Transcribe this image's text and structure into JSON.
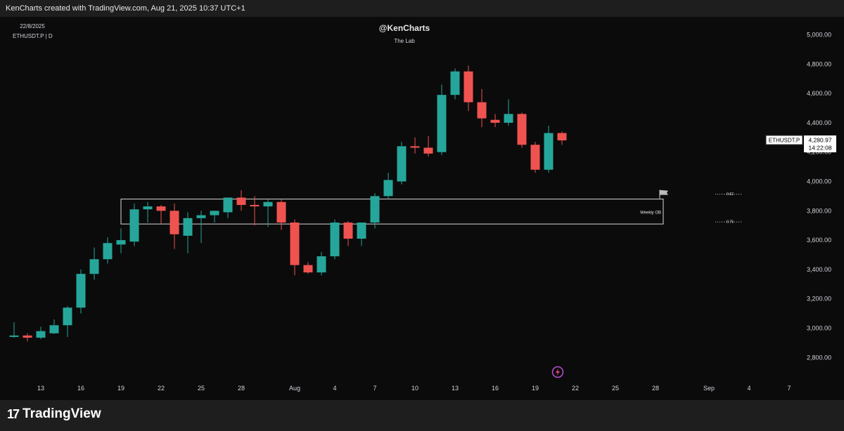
{
  "header": {
    "credit": "KenCharts created with TradingView.com, Aug 21, 2025 10:37 UTC+1"
  },
  "legend": {
    "date": "22/8/2025",
    "symbol": "ETHUSDT.P | D"
  },
  "watermark": {
    "title": "@KenCharts",
    "subtitle": "The Lab"
  },
  "price_label": {
    "symbol": "ETHUSDT.P",
    "price": "4,280.97",
    "countdown": "14:22:08"
  },
  "zone": {
    "label": "Weekly OB",
    "fib_upper": "0.62",
    "fib_lower": "0.75",
    "top": 3880,
    "bottom": 3710
  },
  "footer": {
    "brand": "TradingView"
  },
  "icons": {
    "flag": "flag-icon",
    "lightning": "lightning-icon"
  },
  "colors": {
    "up": "#26a69a",
    "down": "#ef5350",
    "background": "#0b0b0b"
  },
  "chart_data": {
    "type": "candlestick",
    "ylim": [
      2700,
      5100
    ],
    "yticks": [
      2800,
      3000,
      3200,
      3400,
      3600,
      3800,
      4000,
      4200,
      4400,
      4600,
      4800,
      5000
    ],
    "ytick_labels": [
      "2,800.00",
      "3,000.00",
      "3,200.00",
      "3,400.00",
      "3,600.00",
      "3,800.00",
      "4,000.00",
      "4,200.00",
      "4,400.00",
      "4,600.00",
      "4,800.00",
      "5,000.00"
    ],
    "xticks": [
      {
        "label": "13",
        "index": 2
      },
      {
        "label": "16",
        "index": 5
      },
      {
        "label": "19",
        "index": 8
      },
      {
        "label": "22",
        "index": 11
      },
      {
        "label": "25",
        "index": 14
      },
      {
        "label": "28",
        "index": 17
      },
      {
        "label": "Aug",
        "index": 21
      },
      {
        "label": "4",
        "index": 24
      },
      {
        "label": "7",
        "index": 27
      },
      {
        "label": "10",
        "index": 30
      },
      {
        "label": "13",
        "index": 33
      },
      {
        "label": "16",
        "index": 36
      },
      {
        "label": "19",
        "index": 39
      },
      {
        "label": "22",
        "index": 42
      },
      {
        "label": "25",
        "index": 45
      },
      {
        "label": "28",
        "index": 48
      },
      {
        "label": "Sep",
        "index": 52
      },
      {
        "label": "4",
        "index": 55
      },
      {
        "label": "7",
        "index": 58
      }
    ],
    "candles": [
      {
        "o": 2945,
        "h": 3040,
        "l": 2935,
        "c": 2950
      },
      {
        "o": 2950,
        "h": 2965,
        "l": 2910,
        "c": 2935
      },
      {
        "o": 2935,
        "h": 3010,
        "l": 2925,
        "c": 2980
      },
      {
        "o": 2965,
        "h": 3060,
        "l": 2960,
        "c": 3020
      },
      {
        "o": 3020,
        "h": 3150,
        "l": 2940,
        "c": 3140
      },
      {
        "o": 3140,
        "h": 3400,
        "l": 3100,
        "c": 3370
      },
      {
        "o": 3370,
        "h": 3550,
        "l": 3330,
        "c": 3470
      },
      {
        "o": 3470,
        "h": 3620,
        "l": 3440,
        "c": 3580
      },
      {
        "o": 3570,
        "h": 3680,
        "l": 3510,
        "c": 3600
      },
      {
        "o": 3590,
        "h": 3850,
        "l": 3560,
        "c": 3810
      },
      {
        "o": 3810,
        "h": 3860,
        "l": 3720,
        "c": 3830
      },
      {
        "o": 3830,
        "h": 3840,
        "l": 3710,
        "c": 3800
      },
      {
        "o": 3800,
        "h": 3850,
        "l": 3540,
        "c": 3640
      },
      {
        "o": 3630,
        "h": 3790,
        "l": 3510,
        "c": 3750
      },
      {
        "o": 3750,
        "h": 3800,
        "l": 3580,
        "c": 3770
      },
      {
        "o": 3770,
        "h": 3800,
        "l": 3720,
        "c": 3800
      },
      {
        "o": 3790,
        "h": 3890,
        "l": 3750,
        "c": 3890
      },
      {
        "o": 3890,
        "h": 3940,
        "l": 3800,
        "c": 3840
      },
      {
        "o": 3840,
        "h": 3900,
        "l": 3700,
        "c": 3830
      },
      {
        "o": 3830,
        "h": 3880,
        "l": 3690,
        "c": 3860
      },
      {
        "o": 3860,
        "h": 3880,
        "l": 3670,
        "c": 3720
      },
      {
        "o": 3720,
        "h": 3740,
        "l": 3360,
        "c": 3430
      },
      {
        "o": 3430,
        "h": 3450,
        "l": 3370,
        "c": 3380
      },
      {
        "o": 3380,
        "h": 3520,
        "l": 3360,
        "c": 3490
      },
      {
        "o": 3490,
        "h": 3740,
        "l": 3470,
        "c": 3720
      },
      {
        "o": 3720,
        "h": 3730,
        "l": 3560,
        "c": 3610
      },
      {
        "o": 3610,
        "h": 3710,
        "l": 3560,
        "c": 3720
      },
      {
        "o": 3720,
        "h": 3920,
        "l": 3680,
        "c": 3900
      },
      {
        "o": 3900,
        "h": 4060,
        "l": 3880,
        "c": 4010
      },
      {
        "o": 4000,
        "h": 4270,
        "l": 3980,
        "c": 4240
      },
      {
        "o": 4240,
        "h": 4300,
        "l": 4190,
        "c": 4230
      },
      {
        "o": 4230,
        "h": 4310,
        "l": 4170,
        "c": 4190
      },
      {
        "o": 4200,
        "h": 4660,
        "l": 4180,
        "c": 4590
      },
      {
        "o": 4590,
        "h": 4770,
        "l": 4560,
        "c": 4750
      },
      {
        "o": 4750,
        "h": 4790,
        "l": 4480,
        "c": 4540
      },
      {
        "o": 4540,
        "h": 4630,
        "l": 4370,
        "c": 4430
      },
      {
        "o": 4420,
        "h": 4460,
        "l": 4370,
        "c": 4400
      },
      {
        "o": 4400,
        "h": 4560,
        "l": 4380,
        "c": 4460
      },
      {
        "o": 4460,
        "h": 4470,
        "l": 4230,
        "c": 4250
      },
      {
        "o": 4250,
        "h": 4270,
        "l": 4060,
        "c": 4080
      },
      {
        "o": 4080,
        "h": 4380,
        "l": 4060,
        "c": 4330
      },
      {
        "o": 4330,
        "h": 4340,
        "l": 4250,
        "c": 4280
      }
    ]
  }
}
